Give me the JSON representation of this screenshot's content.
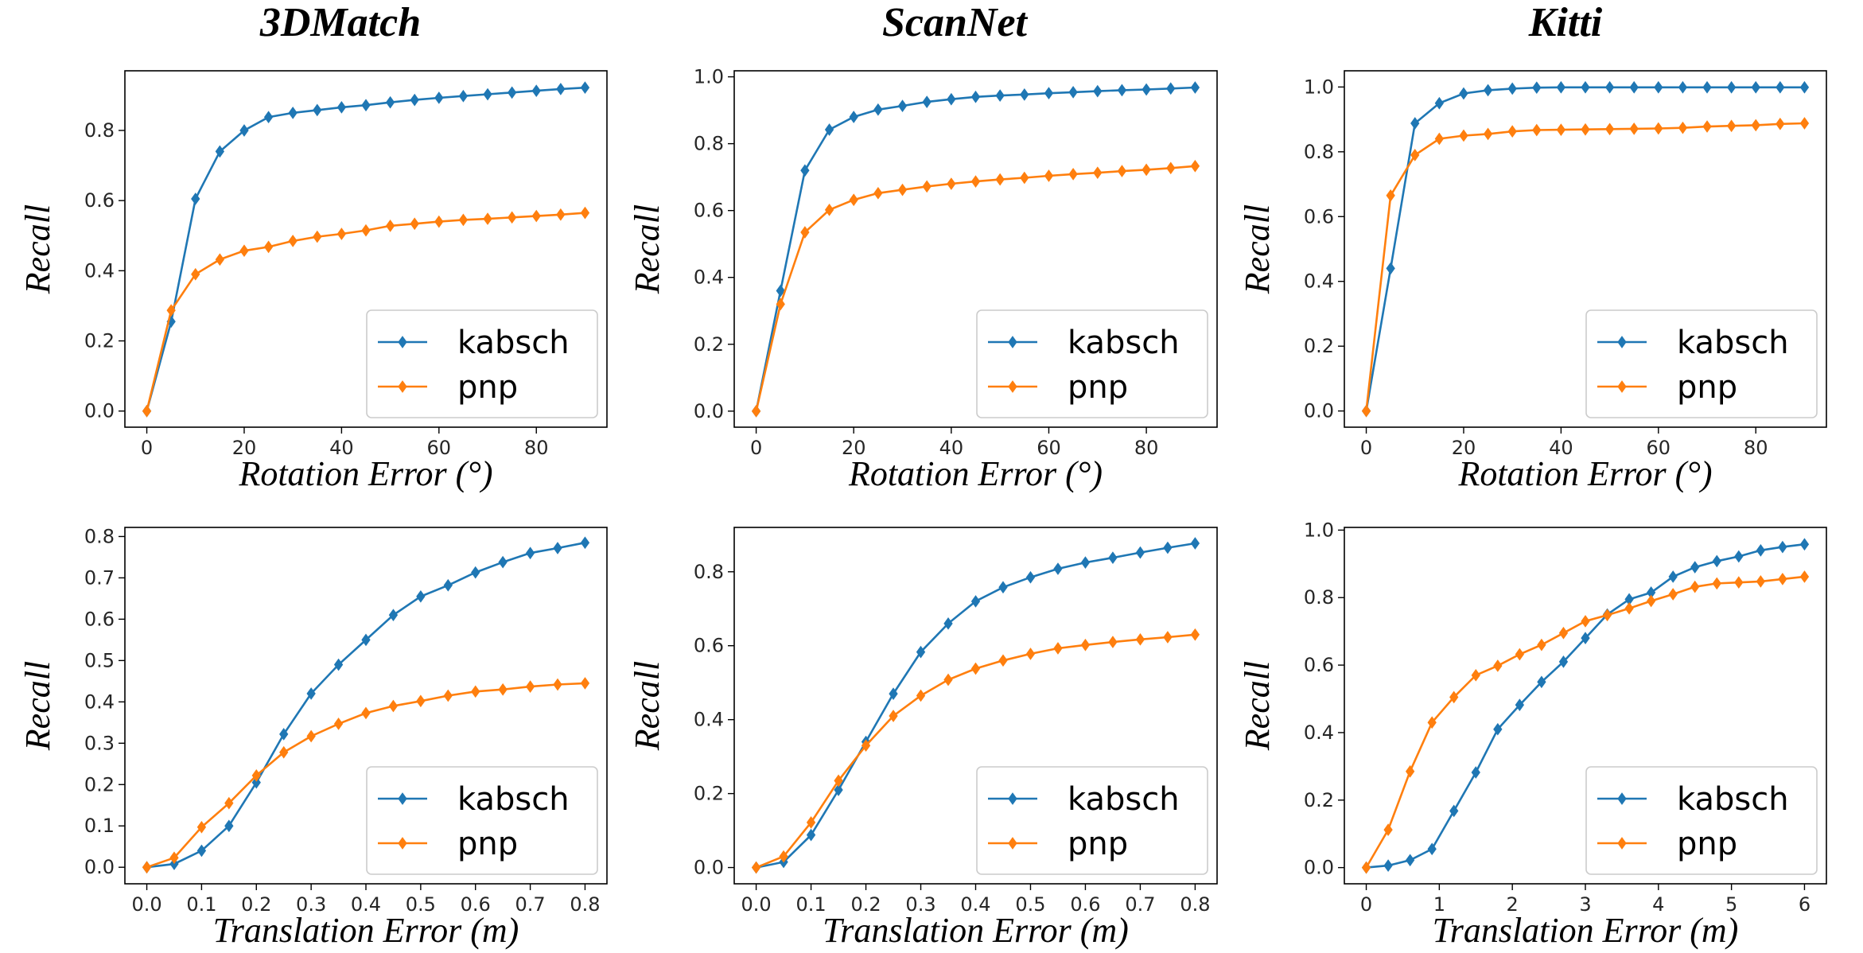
{
  "figure": {
    "column_titles": [
      "3DMatch",
      "ScanNet",
      "Kitti"
    ]
  },
  "colors": {
    "kabsch": "#1f77b4",
    "pnp": "#ff7f0e",
    "axes": "#000000",
    "legend_border": "#cccccc"
  },
  "chart_data": [
    {
      "type": "line",
      "title": "3DMatch",
      "xlabel": "Rotation Error (°)",
      "ylabel": "Recall",
      "xlim": [
        -4.5,
        94.5
      ],
      "ylim": [
        -0.046,
        0.97
      ],
      "xticks": [
        0,
        20,
        40,
        60,
        80
      ],
      "yticks": [
        0.0,
        0.2,
        0.4,
        0.6,
        0.8
      ],
      "x": [
        0,
        5,
        10,
        15,
        20,
        25,
        30,
        35,
        40,
        45,
        50,
        55,
        60,
        65,
        70,
        75,
        80,
        85,
        90
      ],
      "series": [
        {
          "name": "kabsch",
          "values": [
            0.0,
            0.255,
            0.605,
            0.74,
            0.8,
            0.838,
            0.85,
            0.858,
            0.866,
            0.872,
            0.88,
            0.887,
            0.893,
            0.898,
            0.903,
            0.908,
            0.913,
            0.918,
            0.922
          ]
        },
        {
          "name": "pnp",
          "values": [
            0.0,
            0.287,
            0.39,
            0.432,
            0.457,
            0.468,
            0.485,
            0.497,
            0.505,
            0.515,
            0.528,
            0.534,
            0.54,
            0.545,
            0.548,
            0.552,
            0.556,
            0.56,
            0.565
          ]
        }
      ],
      "legend": [
        "kabsch",
        "pnp"
      ],
      "legend_position": "lower-right"
    },
    {
      "type": "line",
      "title": "ScanNet",
      "xlabel": "Rotation Error (°)",
      "ylabel": "Recall",
      "xlim": [
        -4.5,
        94.5
      ],
      "ylim": [
        -0.048,
        1.018
      ],
      "xticks": [
        0,
        20,
        40,
        60,
        80
      ],
      "yticks": [
        0.0,
        0.2,
        0.4,
        0.6,
        0.8,
        1.0
      ],
      "x": [
        0,
        5,
        10,
        15,
        20,
        25,
        30,
        35,
        40,
        45,
        50,
        55,
        60,
        65,
        70,
        75,
        80,
        85,
        90
      ],
      "series": [
        {
          "name": "kabsch",
          "values": [
            0.0,
            0.36,
            0.72,
            0.842,
            0.88,
            0.902,
            0.913,
            0.925,
            0.933,
            0.94,
            0.944,
            0.947,
            0.951,
            0.954,
            0.957,
            0.96,
            0.962,
            0.965,
            0.968
          ]
        },
        {
          "name": "pnp",
          "values": [
            0.0,
            0.32,
            0.535,
            0.602,
            0.632,
            0.652,
            0.662,
            0.672,
            0.68,
            0.687,
            0.693,
            0.698,
            0.704,
            0.709,
            0.713,
            0.718,
            0.722,
            0.727,
            0.733
          ]
        }
      ],
      "legend": [
        "kabsch",
        "pnp"
      ],
      "legend_position": "lower-right"
    },
    {
      "type": "line",
      "title": "Kitti",
      "xlabel": "Rotation Error (°)",
      "ylabel": "Recall",
      "xlim": [
        -4.5,
        94.5
      ],
      "ylim": [
        -0.05,
        1.05
      ],
      "xticks": [
        0,
        20,
        40,
        60,
        80
      ],
      "yticks": [
        0.0,
        0.2,
        0.4,
        0.6,
        0.8,
        1.0
      ],
      "x": [
        0,
        5,
        10,
        15,
        20,
        25,
        30,
        35,
        40,
        45,
        50,
        55,
        60,
        65,
        70,
        75,
        80,
        85,
        90
      ],
      "series": [
        {
          "name": "kabsch",
          "values": [
            0.0,
            0.44,
            0.888,
            0.95,
            0.98,
            0.99,
            0.995,
            0.998,
            0.999,
            0.999,
            0.999,
            0.999,
            0.999,
            0.999,
            0.999,
            0.999,
            0.999,
            0.999,
            0.999
          ]
        },
        {
          "name": "pnp",
          "values": [
            0.0,
            0.665,
            0.79,
            0.84,
            0.85,
            0.855,
            0.863,
            0.867,
            0.868,
            0.869,
            0.87,
            0.871,
            0.872,
            0.874,
            0.878,
            0.88,
            0.882,
            0.886,
            0.888
          ]
        }
      ],
      "legend": [
        "kabsch",
        "pnp"
      ],
      "legend_position": "lower-right"
    },
    {
      "type": "line",
      "title": "",
      "xlabel": "Translation Error (m)",
      "ylabel": "Recall",
      "xlim": [
        -0.04,
        0.84
      ],
      "ylim": [
        -0.04,
        0.822
      ],
      "xticks": [
        0.0,
        0.1,
        0.2,
        0.3,
        0.4,
        0.5,
        0.6,
        0.7,
        0.8
      ],
      "yticks": [
        0.0,
        0.1,
        0.2,
        0.3,
        0.4,
        0.5,
        0.6,
        0.7,
        0.8
      ],
      "x": [
        0.0,
        0.05,
        0.1,
        0.15,
        0.2,
        0.25,
        0.3,
        0.35,
        0.4,
        0.45,
        0.5,
        0.55,
        0.6,
        0.65,
        0.7,
        0.75,
        0.8
      ],
      "series": [
        {
          "name": "kabsch",
          "values": [
            0.0,
            0.008,
            0.04,
            0.1,
            0.205,
            0.322,
            0.42,
            0.49,
            0.55,
            0.61,
            0.655,
            0.682,
            0.713,
            0.738,
            0.76,
            0.772,
            0.785
          ]
        },
        {
          "name": "pnp",
          "values": [
            0.0,
            0.023,
            0.097,
            0.155,
            0.222,
            0.278,
            0.317,
            0.347,
            0.373,
            0.39,
            0.402,
            0.415,
            0.425,
            0.43,
            0.437,
            0.442,
            0.445
          ]
        }
      ],
      "legend": [
        "kabsch",
        "pnp"
      ],
      "legend_position": "lower-right"
    },
    {
      "type": "line",
      "title": "",
      "xlabel": "Translation Error (m)",
      "ylabel": "Recall",
      "xlim": [
        -0.04,
        0.84
      ],
      "ylim": [
        -0.044,
        0.92
      ],
      "xticks": [
        0.0,
        0.1,
        0.2,
        0.3,
        0.4,
        0.5,
        0.6,
        0.7,
        0.8
      ],
      "yticks": [
        0.0,
        0.2,
        0.4,
        0.6,
        0.8
      ],
      "x": [
        0.0,
        0.05,
        0.1,
        0.15,
        0.2,
        0.25,
        0.3,
        0.35,
        0.4,
        0.45,
        0.5,
        0.55,
        0.6,
        0.65,
        0.7,
        0.75,
        0.8
      ],
      "series": [
        {
          "name": "kabsch",
          "values": [
            0.0,
            0.015,
            0.088,
            0.21,
            0.34,
            0.47,
            0.583,
            0.66,
            0.72,
            0.758,
            0.785,
            0.808,
            0.825,
            0.838,
            0.852,
            0.865,
            0.877
          ]
        },
        {
          "name": "pnp",
          "values": [
            0.0,
            0.03,
            0.122,
            0.235,
            0.33,
            0.41,
            0.465,
            0.508,
            0.538,
            0.56,
            0.578,
            0.593,
            0.602,
            0.61,
            0.617,
            0.623,
            0.63
          ]
        }
      ],
      "legend": [
        "kabsch",
        "pnp"
      ],
      "legend_position": "lower-right"
    },
    {
      "type": "line",
      "title": "",
      "xlabel": "Translation Error (m)",
      "ylabel": "Recall",
      "xlim": [
        -0.3,
        6.3
      ],
      "ylim": [
        -0.048,
        1.008
      ],
      "xticks": [
        0,
        1,
        2,
        3,
        4,
        5,
        6
      ],
      "yticks": [
        0.0,
        0.2,
        0.4,
        0.6,
        0.8,
        1.0
      ],
      "x": [
        0.0,
        0.3,
        0.6,
        0.9,
        1.2,
        1.5,
        1.8,
        2.1,
        2.4,
        2.7,
        3.0,
        3.3,
        3.6,
        3.9,
        4.2,
        4.5,
        4.8,
        5.1,
        5.4,
        5.7,
        6.0
      ],
      "series": [
        {
          "name": "kabsch",
          "values": [
            0.0,
            0.006,
            0.022,
            0.055,
            0.168,
            0.282,
            0.41,
            0.482,
            0.55,
            0.61,
            0.68,
            0.75,
            0.795,
            0.815,
            0.862,
            0.89,
            0.908,
            0.922,
            0.94,
            0.95,
            0.958
          ]
        },
        {
          "name": "pnp",
          "values": [
            0.0,
            0.112,
            0.285,
            0.43,
            0.505,
            0.57,
            0.598,
            0.632,
            0.66,
            0.695,
            0.73,
            0.748,
            0.768,
            0.79,
            0.81,
            0.832,
            0.842,
            0.845,
            0.848,
            0.855,
            0.862
          ]
        }
      ],
      "legend": [
        "kabsch",
        "pnp"
      ],
      "legend_position": "lower-right"
    }
  ]
}
